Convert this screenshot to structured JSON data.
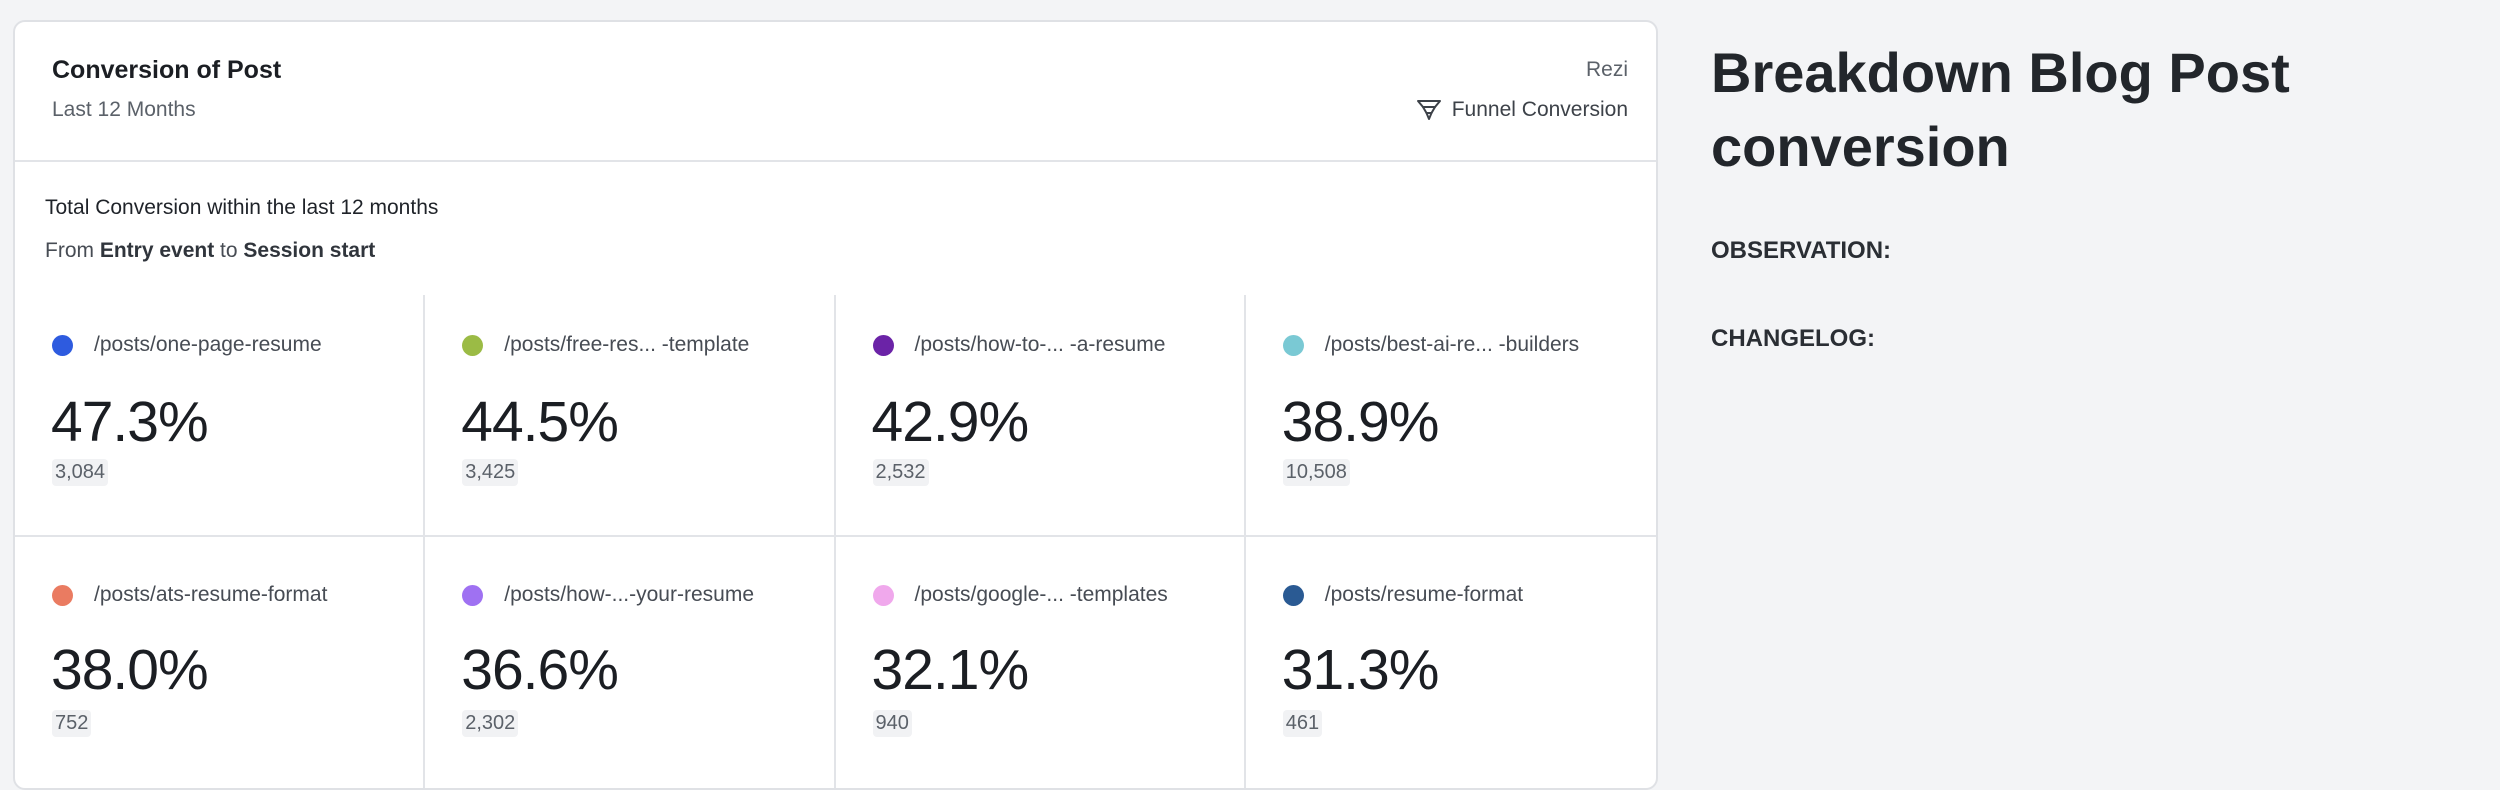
{
  "card": {
    "title": "Conversion of Post",
    "subtitle": "Last 12 Months",
    "project": "Rezi",
    "funnel_label": "Funnel Conversion",
    "funnel_icon": "funnel-icon",
    "summary_line1": "Total Conversion within the last 12 months",
    "summary_from": "From ",
    "summary_entry": "Entry event",
    "summary_to": " to ",
    "summary_session": "Session start"
  },
  "metrics": [
    {
      "path": "/posts/one-page-resume",
      "percent": "47.3%",
      "count": "3,084",
      "color": "#2e5bdf"
    },
    {
      "path": "/posts/free-res...  -template",
      "percent": "44.5%",
      "count": "3,425",
      "color": "#9bbb45"
    },
    {
      "path": "/posts/how-to-... -a-resume",
      "percent": "42.9%",
      "count": "2,532",
      "color": "#6b23a7"
    },
    {
      "path": "/posts/best-ai-re... -builders",
      "percent": "38.9%",
      "count": "10,508",
      "color": "#7ac9d4"
    },
    {
      "path": "/posts/ats-resume-format",
      "percent": "38.0%",
      "count": "752",
      "color": "#ea7b61"
    },
    {
      "path": "/posts/how-...-your-resume",
      "percent": "36.6%",
      "count": "2,302",
      "color": "#9f71f2"
    },
    {
      "path": "/posts/google-... -templates",
      "percent": "32.1%",
      "count": "940",
      "color": "#f0a8ec"
    },
    {
      "path": "/posts/resume-format",
      "percent": "31.3%",
      "count": "461",
      "color": "#2a5a93"
    }
  ],
  "side": {
    "title": "Breakdown Blog Post conversion",
    "observation_label": "OBSERVATION:",
    "changelog_label": "CHANGELOG:"
  }
}
